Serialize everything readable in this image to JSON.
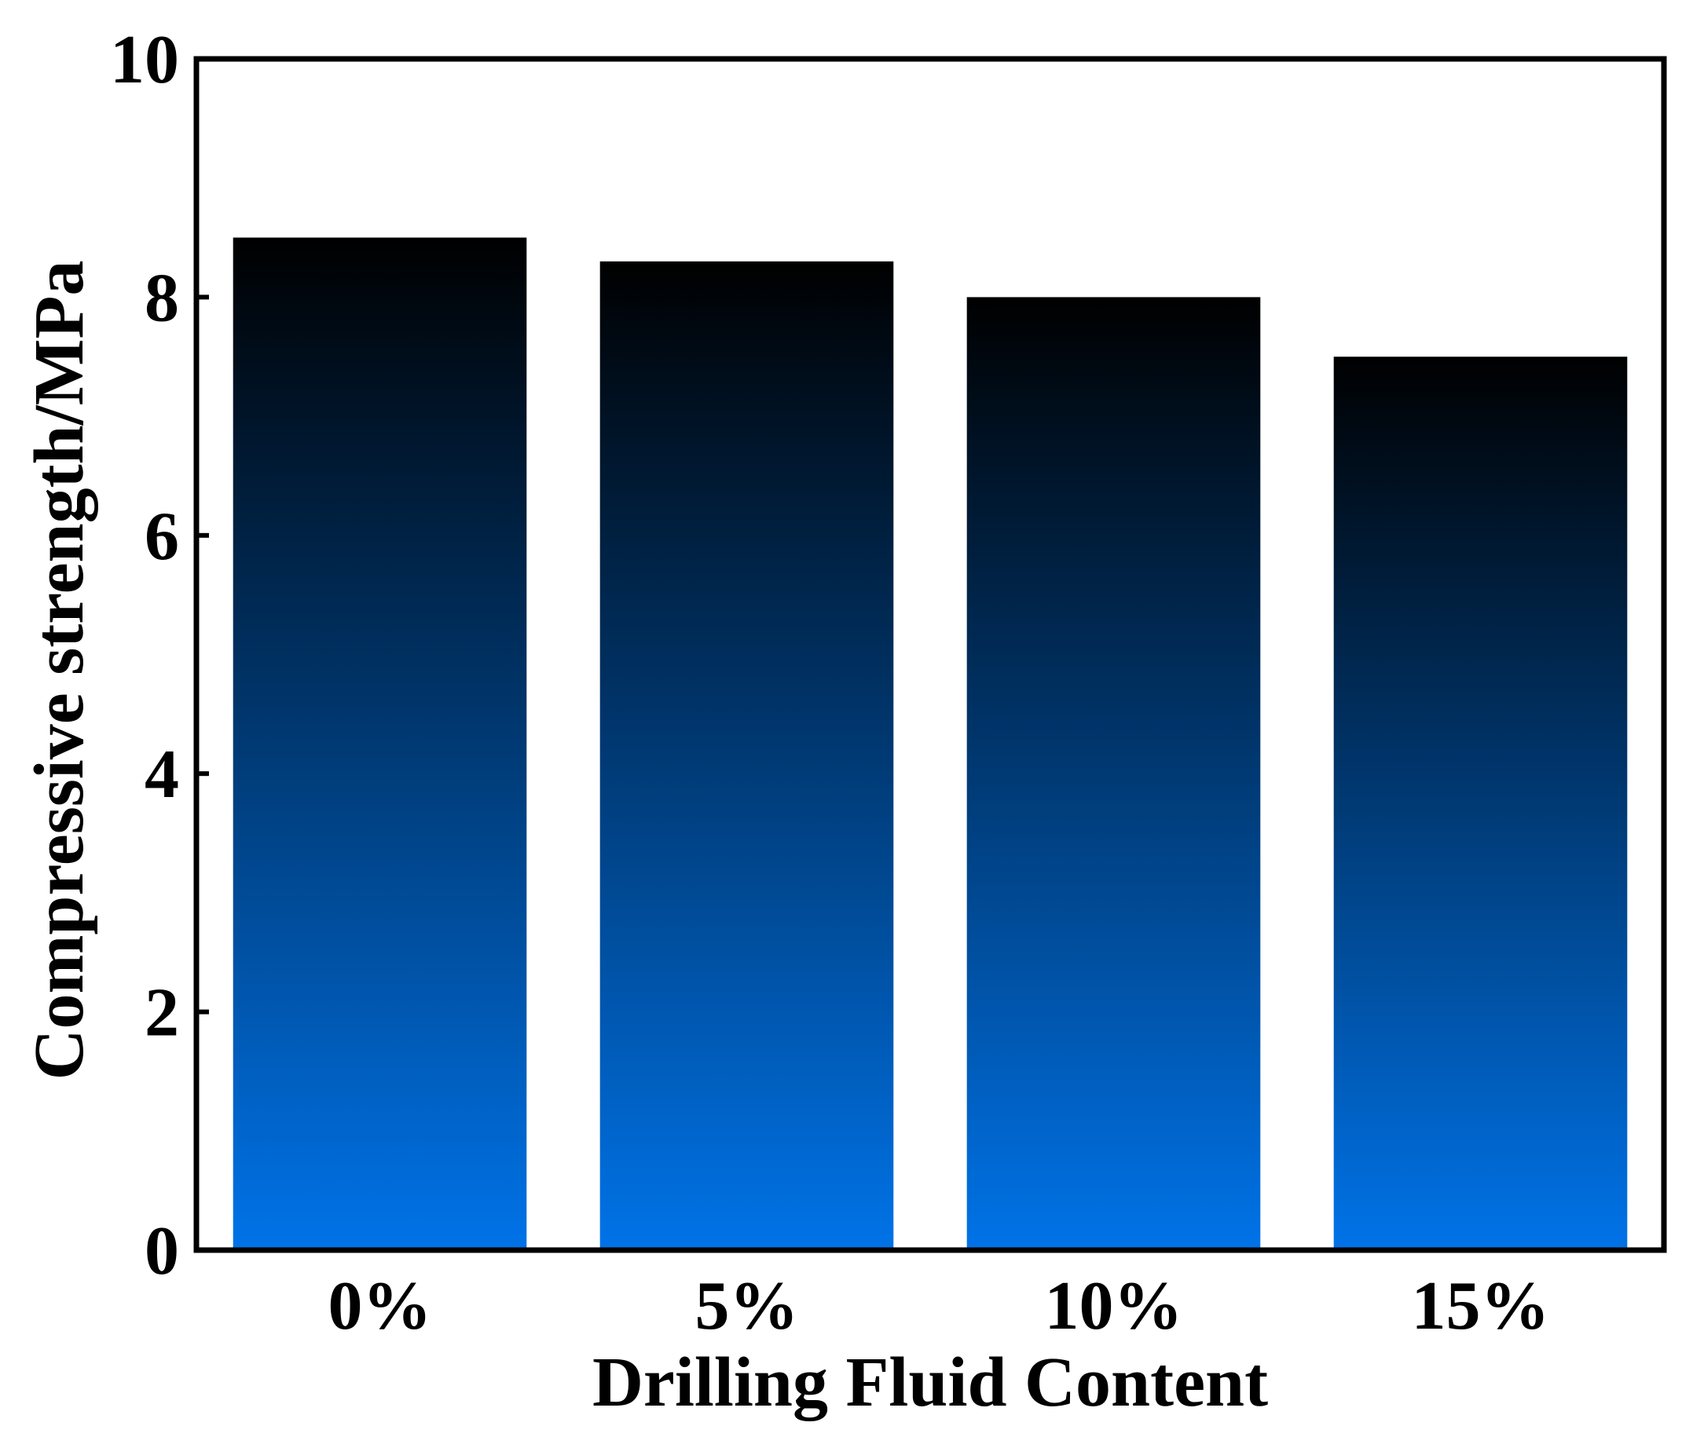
{
  "chart_data": {
    "type": "bar",
    "title": "",
    "xlabel": "Drilling Fluid Content",
    "ylabel": "Compressive strength/MPa",
    "categories": [
      "0%",
      "5%",
      "10%",
      "15%"
    ],
    "values": [
      8.5,
      8.3,
      8.0,
      7.5
    ],
    "ylim": [
      0,
      10
    ],
    "yticks": [
      "0",
      "2",
      "4",
      "6",
      "8",
      "10"
    ],
    "grid": false,
    "legend": "none",
    "bar_gradient": {
      "top": "#000000",
      "bottom": "#0073E8"
    },
    "axis_color": "#000000"
  }
}
